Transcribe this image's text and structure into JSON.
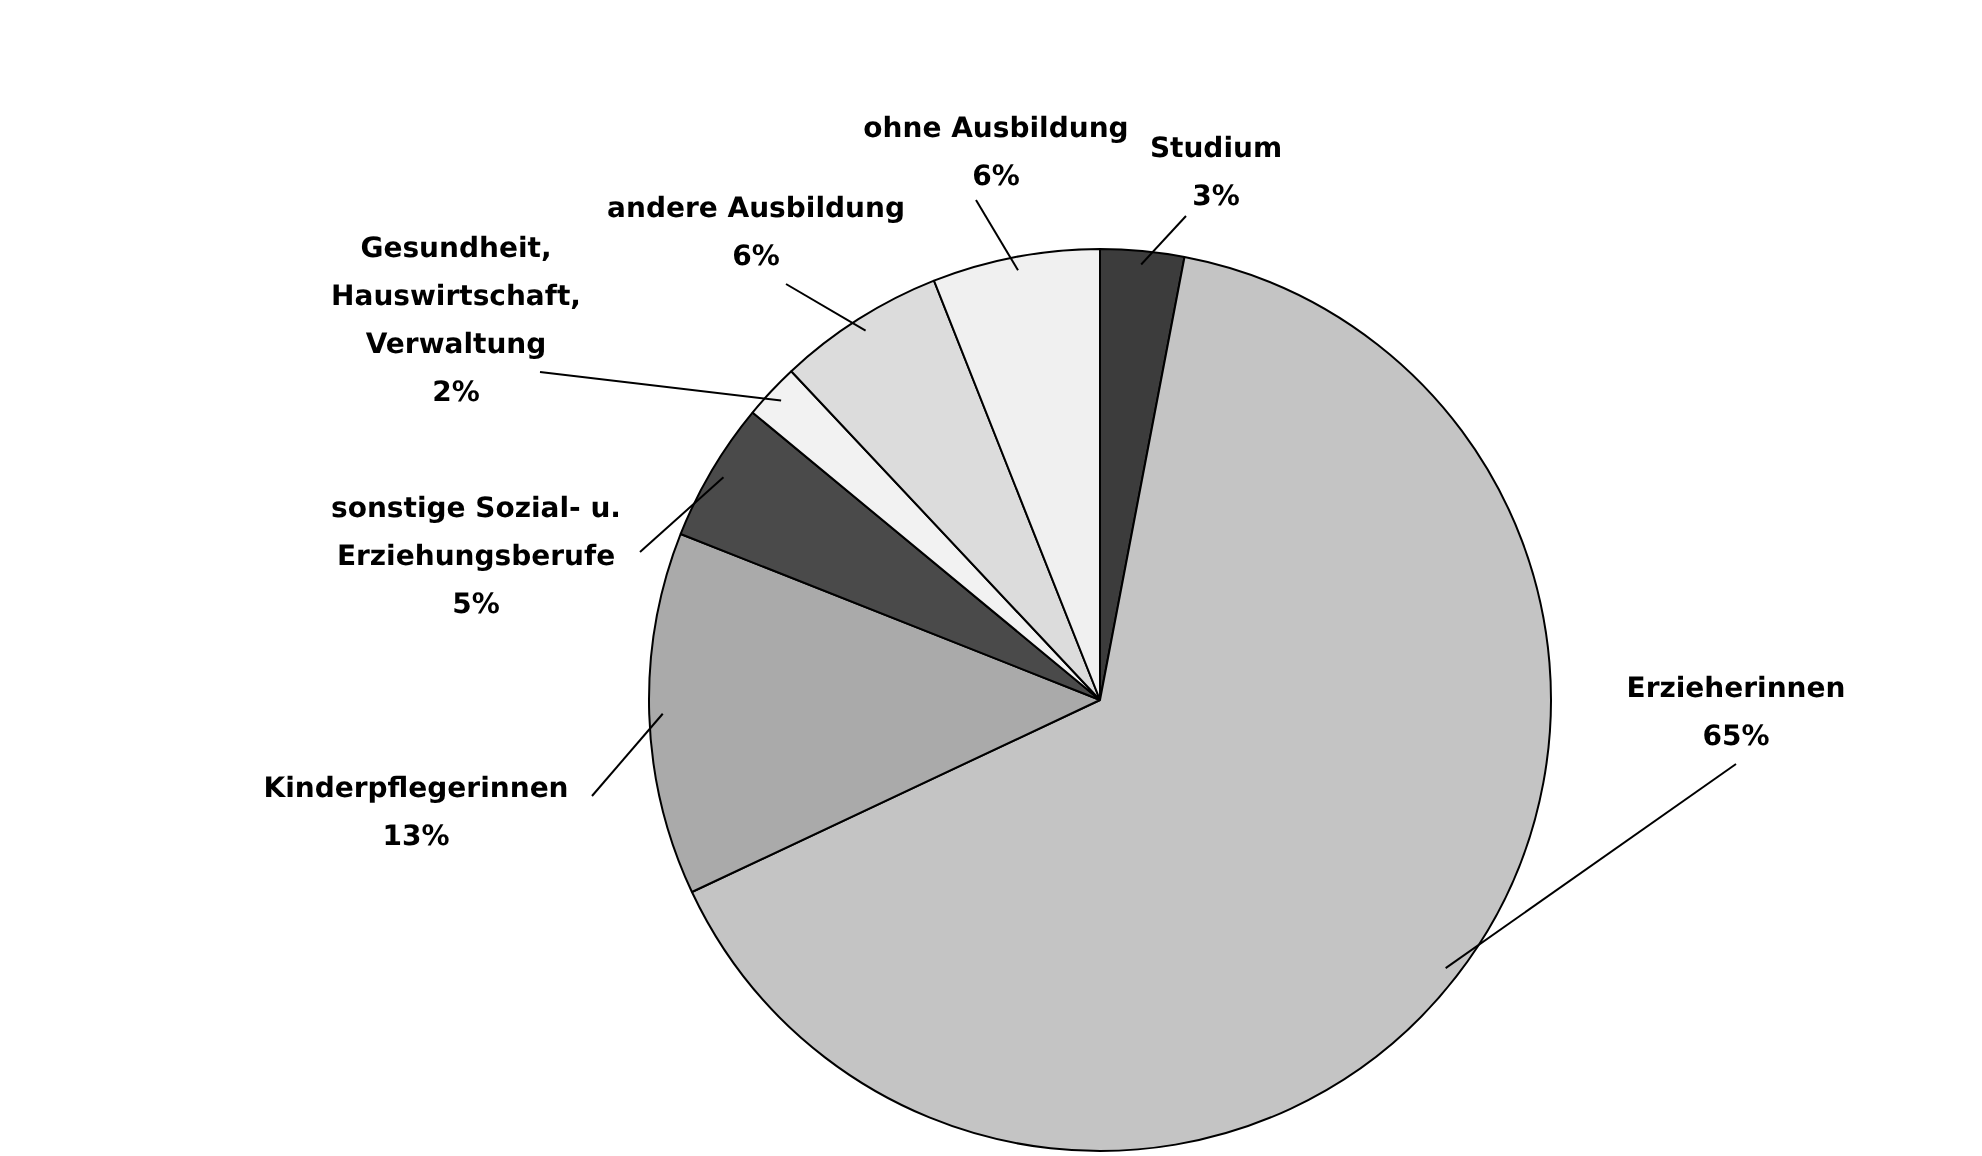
{
  "chart_data": {
    "type": "pie",
    "categories": [
      "Studium",
      "Erzieherinnen",
      "Kinderpflegerinnen",
      "sonstige Sozial- u. Erziehungsberufe",
      "Gesundheit, Hauswirtschaft, Verwaltung",
      "andere Ausbildung",
      "ohne Ausbildung"
    ],
    "values": [
      3,
      65,
      13,
      5,
      2,
      6,
      6
    ],
    "value_labels": [
      "3%",
      "65%",
      "13%",
      "5%",
      "2%",
      "6%",
      "6%"
    ],
    "colors": [
      "#3c3c3c",
      "#c4c4c4",
      "#aaaaaa",
      "#4a4a4a",
      "#f2f2f2",
      "#dcdcdc",
      "#f0f0f0"
    ],
    "legend": false
  }
}
